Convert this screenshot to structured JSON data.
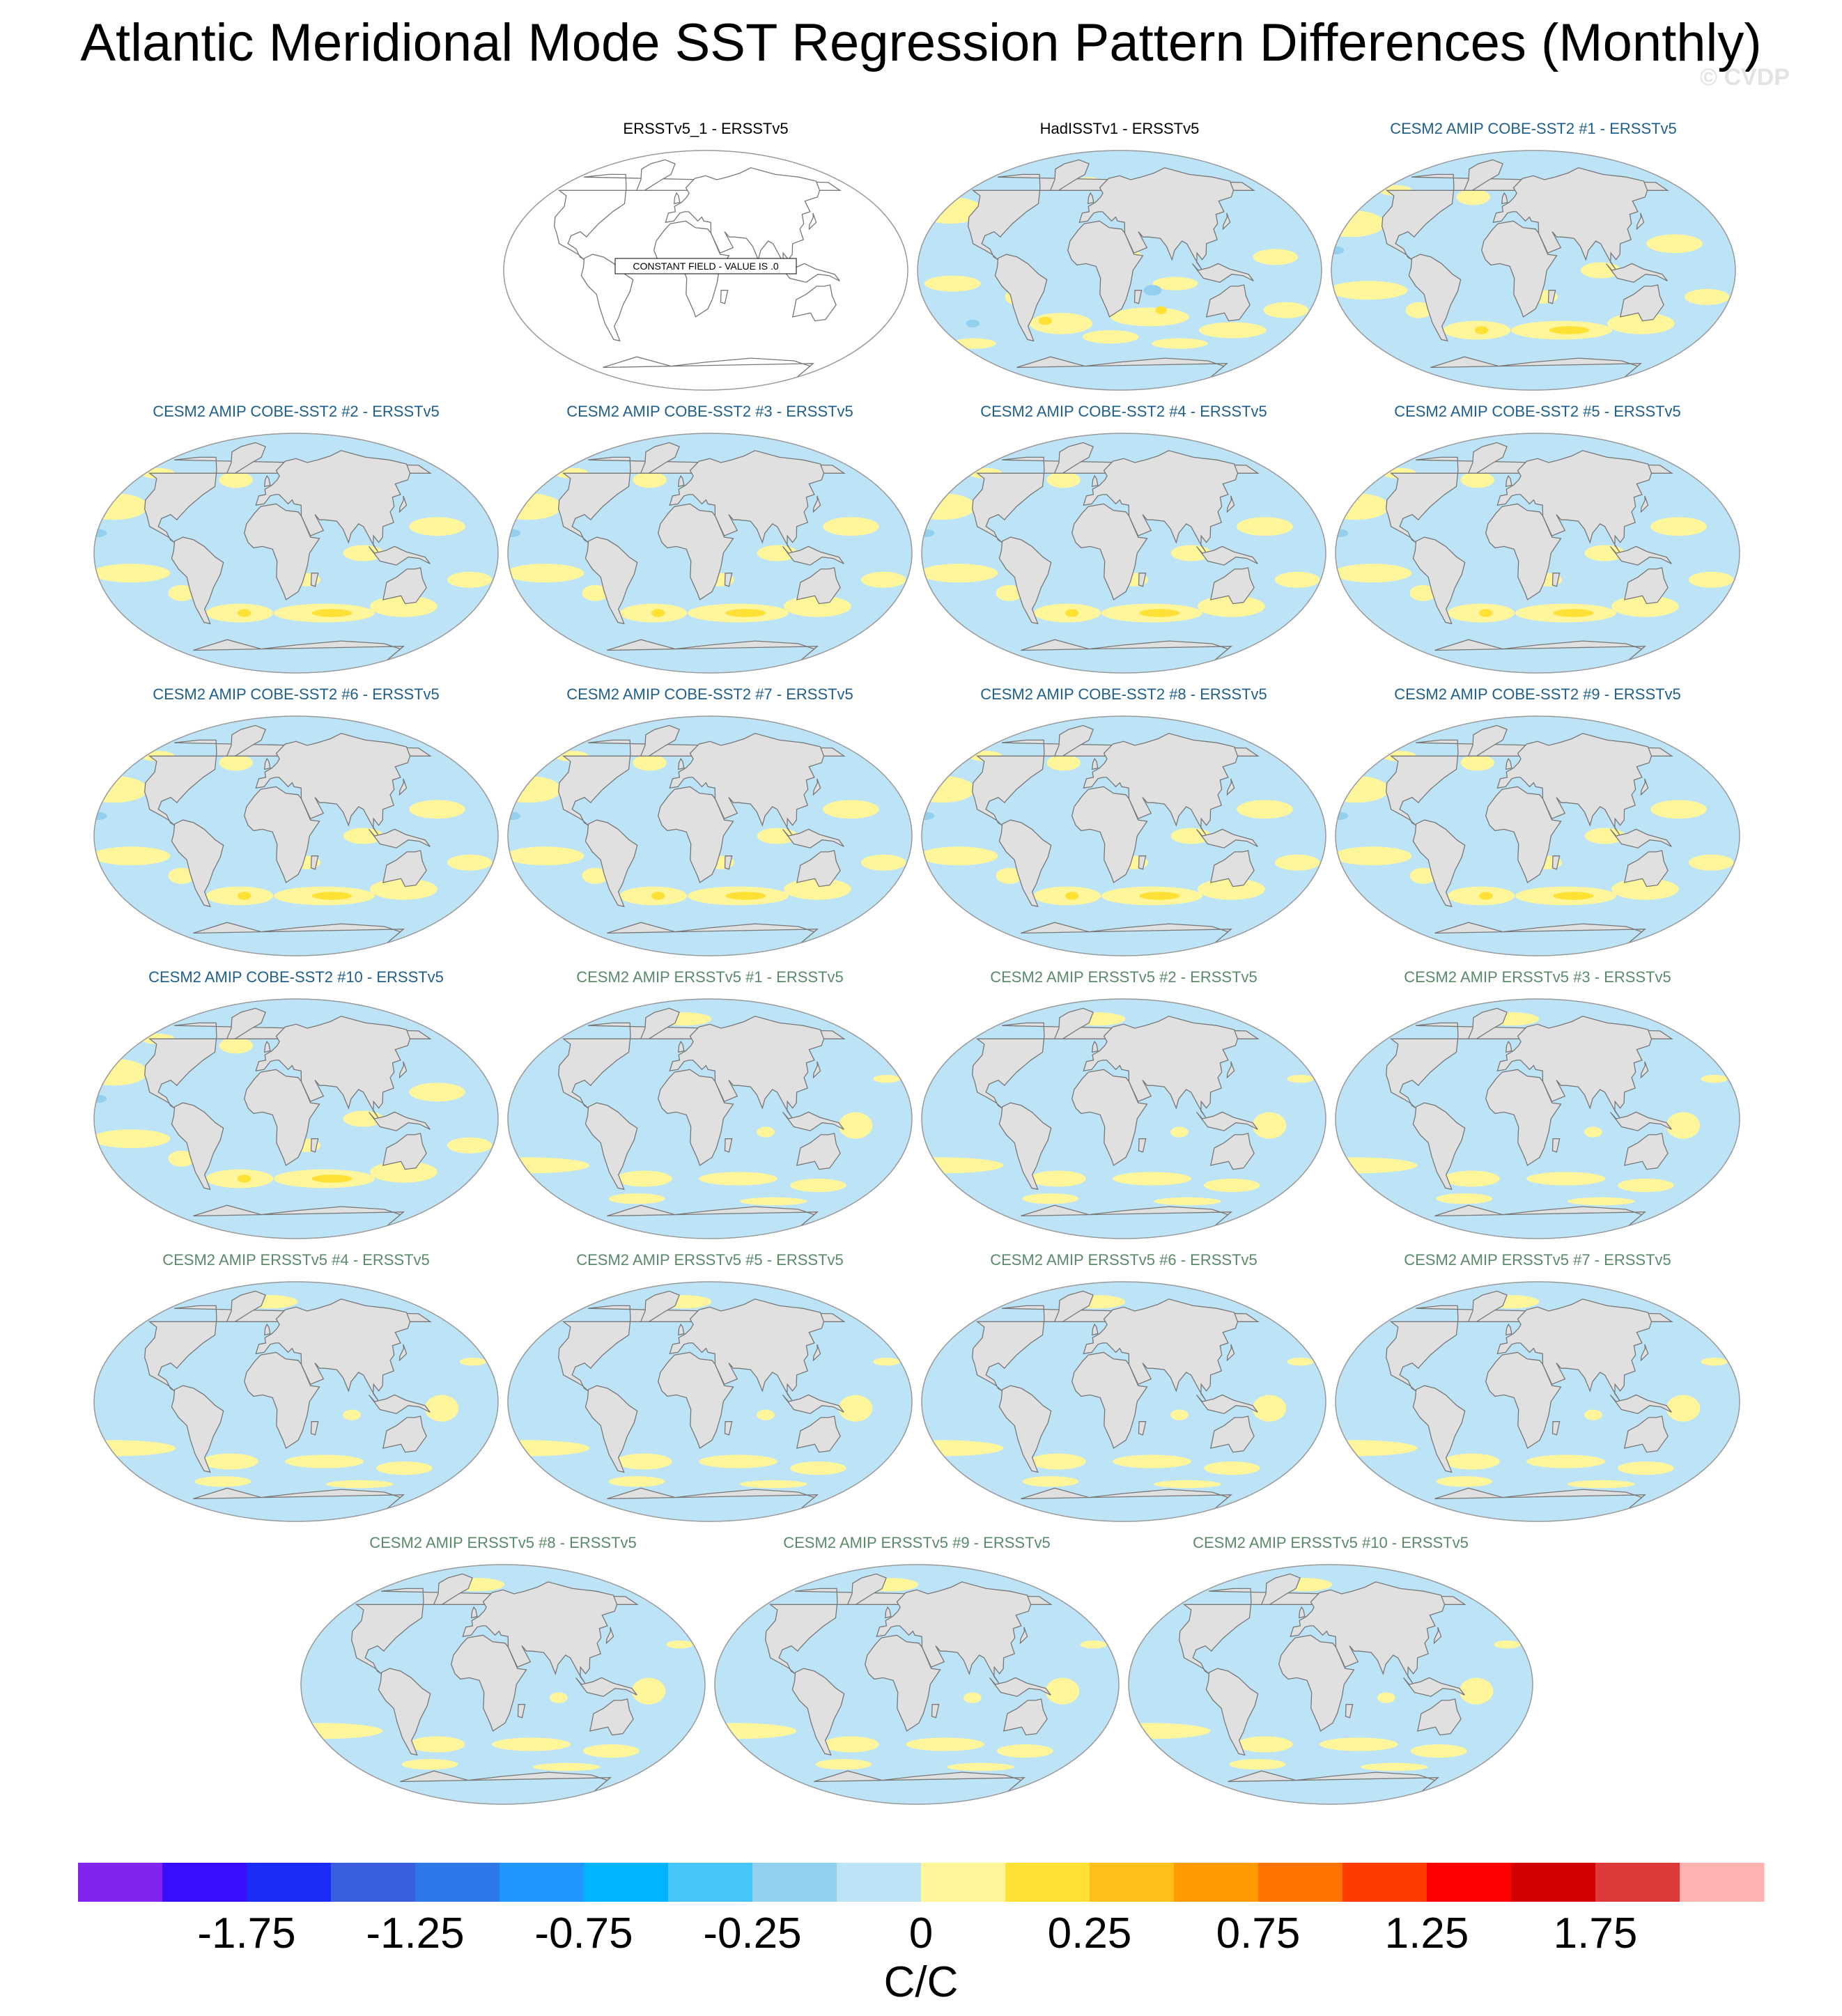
{
  "title": "Atlantic Meridional Mode SST Regression Pattern Differences (Monthly)",
  "watermark": "© CVDP",
  "panels": [
    {
      "title": "ERSSTv5_1 - ERSSTv5",
      "kind": "constant",
      "title_color": "#000000",
      "note": "CONSTANT FIELD - VALUE IS .0"
    },
    {
      "title": "HadISSTv1 - ERSSTv5",
      "kind": "obs",
      "title_color": "#000000"
    },
    {
      "title": "CESM2 AMIP COBE-SST2 #1 - ERSSTv5",
      "kind": "cobe",
      "title_color": "#1f5f8b"
    },
    {
      "title": "CESM2 AMIP COBE-SST2 #2 - ERSSTv5",
      "kind": "cobe",
      "title_color": "#1f5f8b"
    },
    {
      "title": "CESM2 AMIP COBE-SST2 #3 - ERSSTv5",
      "kind": "cobe",
      "title_color": "#1f5f8b"
    },
    {
      "title": "CESM2 AMIP COBE-SST2 #4 - ERSSTv5",
      "kind": "cobe",
      "title_color": "#1f5f8b"
    },
    {
      "title": "CESM2 AMIP COBE-SST2 #5 - ERSSTv5",
      "kind": "cobe",
      "title_color": "#1f5f8b"
    },
    {
      "title": "CESM2 AMIP COBE-SST2 #6 - ERSSTv5",
      "kind": "cobe",
      "title_color": "#1f5f8b"
    },
    {
      "title": "CESM2 AMIP COBE-SST2 #7 - ERSSTv5",
      "kind": "cobe",
      "title_color": "#1f5f8b"
    },
    {
      "title": "CESM2 AMIP COBE-SST2 #8 - ERSSTv5",
      "kind": "cobe",
      "title_color": "#1f5f8b"
    },
    {
      "title": "CESM2 AMIP COBE-SST2 #9 - ERSSTv5",
      "kind": "cobe",
      "title_color": "#1f5f8b"
    },
    {
      "title": "CESM2 AMIP COBE-SST2 #10 - ERSSTv5",
      "kind": "cobe",
      "title_color": "#1f5f8b"
    },
    {
      "title": "CESM2 AMIP ERSSTv5 #1 - ERSSTv5",
      "kind": "ersst",
      "title_color": "#5a8a6a"
    },
    {
      "title": "CESM2 AMIP ERSSTv5 #2 - ERSSTv5",
      "kind": "ersst",
      "title_color": "#5a8a6a"
    },
    {
      "title": "CESM2 AMIP ERSSTv5 #3 - ERSSTv5",
      "kind": "ersst",
      "title_color": "#5a8a6a"
    },
    {
      "title": "CESM2 AMIP ERSSTv5 #4 - ERSSTv5",
      "kind": "ersst",
      "title_color": "#5a8a6a"
    },
    {
      "title": "CESM2 AMIP ERSSTv5 #5 - ERSSTv5",
      "kind": "ersst",
      "title_color": "#5a8a6a"
    },
    {
      "title": "CESM2 AMIP ERSSTv5 #6 - ERSSTv5",
      "kind": "ersst",
      "title_color": "#5a8a6a"
    },
    {
      "title": "CESM2 AMIP ERSSTv5 #7 - ERSSTv5",
      "kind": "ersst",
      "title_color": "#5a8a6a"
    },
    {
      "title": "CESM2 AMIP ERSSTv5 #8 - ERSSTv5",
      "kind": "ersst",
      "title_color": "#5a8a6a"
    },
    {
      "title": "CESM2 AMIP ERSSTv5 #9 - ERSSTv5",
      "kind": "ersst",
      "title_color": "#5a8a6a"
    },
    {
      "title": "CESM2 AMIP ERSSTv5 #10 - ERSSTv5",
      "kind": "ersst",
      "title_color": "#5a8a6a"
    }
  ],
  "colorbar": {
    "colors": [
      "#8224f0",
      "#3a0dff",
      "#1a2cf5",
      "#3a5ee0",
      "#2f78ec",
      "#2096ff",
      "#00b4ff",
      "#45c6f8",
      "#93d0ee",
      "#bde4f6",
      "#fff59a",
      "#ffe035",
      "#ffbf1a",
      "#ff9a00",
      "#ff7300",
      "#ff3c00",
      "#ff0000",
      "#d40000",
      "#dc3a3a",
      "#ffb2b2"
    ],
    "labels": [
      "-1.75",
      "-1.25",
      "-0.75",
      "-0.25",
      "0",
      "0.25",
      "0.75",
      "1.25",
      "1.75"
    ],
    "units": "C/C"
  },
  "map_colors": {
    "land": "#e0e0e0",
    "coast": "#777777",
    "negative": "#bde4f6",
    "positive": "#fff59a",
    "strong_positive": "#ffe035",
    "strong_negative": "#93d0ee"
  }
}
